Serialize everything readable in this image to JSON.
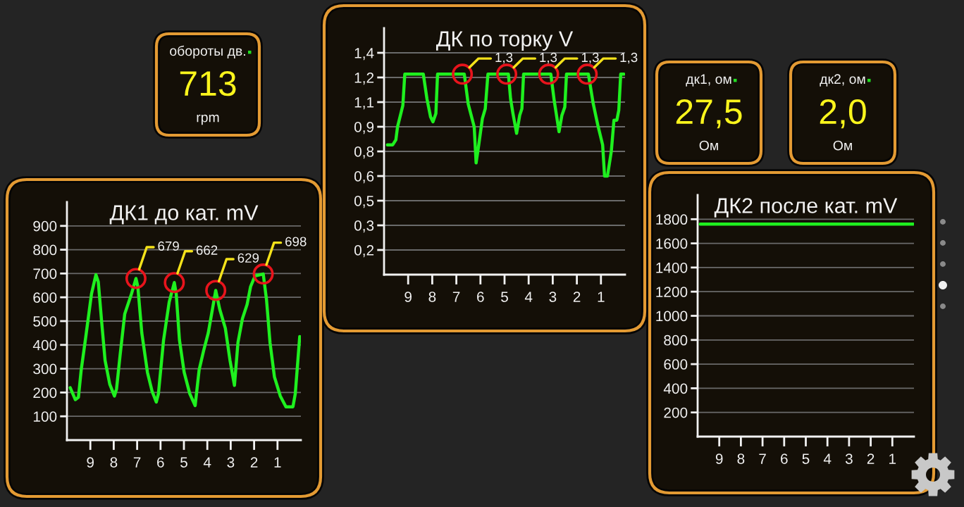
{
  "chart_data": [
    {
      "type": "other",
      "title": "обороты дв.",
      "annotations": [
        "713",
        "rpm"
      ]
    },
    {
      "type": "line",
      "title": "ДК по торку V",
      "x": [
        9.86,
        9.64,
        9.51,
        9.44,
        9.22,
        9.14,
        8.37,
        8.22,
        8.07,
        7.97,
        7.85,
        7.78,
        6.67,
        6.51,
        6.26,
        6.18,
        6.07,
        5.92,
        5.8,
        5.69,
        4.84,
        4.75,
        4.65,
        4.5,
        4.37,
        4.28,
        4.21,
        3.08,
        2.94,
        2.74,
        2.62,
        2.5,
        2.43,
        1.52,
        1.32,
        1.13,
        0.93,
        0.85,
        0.73,
        0.57,
        0.46,
        0.34,
        0.26,
        0.18,
        0.05
      ],
      "series": [
        {
          "color": "#1ff01f",
          "values": [
            0.84,
            0.84,
            0.87,
            0.95,
            1.08,
            1.27,
            1.27,
            1.12,
            1.01,
            0.98,
            1.03,
            1.27,
            1.27,
            1.09,
            0.95,
            0.73,
            0.84,
            1.0,
            1.06,
            1.27,
            1.27,
            1.12,
            1.03,
            0.91,
            1.02,
            1.06,
            1.27,
            1.27,
            1.11,
            0.92,
            1.02,
            1.07,
            1.27,
            1.27,
            1.09,
            0.96,
            0.84,
            0.65,
            0.65,
            0.8,
            0.99,
            0.99,
            1.05,
            1.27,
            1.27
          ]
        }
      ],
      "xlim": [
        10,
        0
      ],
      "xticks": [
        9,
        8,
        7,
        6,
        5,
        4,
        3,
        2,
        1
      ],
      "ylim": [
        0.05,
        1.55
      ],
      "yticks": [
        {
          "value": 0.2,
          "label": "0,2"
        },
        {
          "value": 0.35,
          "label": "0,3"
        },
        {
          "value": 0.5,
          "label": "0,5"
        },
        {
          "value": 0.65,
          "label": "0,6"
        },
        {
          "value": 0.8,
          "label": "0,8"
        },
        {
          "value": 0.95,
          "label": "0,9"
        },
        {
          "value": 1.1,
          "label": "1,1"
        },
        {
          "value": 1.25,
          "label": "1,2"
        },
        {
          "value": 1.4,
          "label": "1,4"
        }
      ],
      "grid": "y",
      "annotations": [
        {
          "text": "1,3",
          "x": 6.75,
          "y": 1.27
        },
        {
          "text": "1,3",
          "x": 4.91,
          "y": 1.27
        },
        {
          "text": "1,3",
          "x": 3.17,
          "y": 1.27
        },
        {
          "text": "1,3",
          "x": 1.57,
          "y": 1.27
        }
      ]
    },
    {
      "type": "other",
      "title": "дк1, ом",
      "annotations": [
        "27,5",
        "Ом"
      ]
    },
    {
      "type": "other",
      "title": "дк2, ом",
      "annotations": [
        "2,0",
        "Ом"
      ]
    },
    {
      "type": "line",
      "title": "ДК1 до кат. mV",
      "x": [
        9.86,
        9.64,
        9.51,
        9.39,
        9.2,
        8.95,
        8.76,
        8.66,
        8.51,
        8.37,
        8.17,
        7.97,
        7.88,
        7.73,
        7.53,
        7.24,
        7.05,
        6.97,
        6.8,
        6.56,
        6.36,
        6.18,
        6.09,
        5.87,
        5.63,
        5.41,
        5.33,
        5.19,
        4.99,
        4.75,
        4.52,
        4.35,
        4.16,
        3.96,
        3.64,
        3.47,
        3.23,
        3.03,
        2.84,
        2.69,
        2.5,
        2.3,
        2.15,
        1.96,
        1.61,
        1.47,
        1.32,
        1.13,
        0.88,
        0.64,
        0.34,
        0.24,
        0.05
      ],
      "series": [
        {
          "color": "#1ff01f",
          "values": [
            220,
            170,
            180,
            295,
            430,
            615,
            695,
            665,
            490,
            335,
            235,
            185,
            215,
            355,
            530,
            615,
            679,
            645,
            450,
            285,
            205,
            160,
            195,
            420,
            580,
            662,
            615,
            420,
            285,
            195,
            145,
            295,
            375,
            450,
            629,
            550,
            470,
            335,
            230,
            410,
            510,
            570,
            645,
            690,
            698,
            590,
            410,
            265,
            185,
            140,
            140,
            195,
            435
          ]
        }
      ],
      "xlim": [
        10,
        0
      ],
      "xticks": [
        9,
        8,
        7,
        6,
        5,
        4,
        3,
        2,
        1
      ],
      "ylim": [
        0,
        1000
      ],
      "yticks": [
        100,
        200,
        300,
        400,
        500,
        600,
        700,
        800,
        900
      ],
      "grid": "y",
      "annotations": [
        {
          "text": "679",
          "x": 7.05,
          "y": 679
        },
        {
          "text": "662",
          "x": 5.41,
          "y": 662
        },
        {
          "text": "629",
          "x": 3.64,
          "y": 629
        },
        {
          "text": "698",
          "x": 1.61,
          "y": 698
        }
      ]
    },
    {
      "type": "line",
      "title": "ДК2 после кат. mV",
      "x": [
        9.88,
        0.02
      ],
      "series": [
        {
          "color": "#1ff01f",
          "values": [
            1760,
            1760
          ]
        }
      ],
      "xlim": [
        10,
        0
      ],
      "xticks": [
        9,
        8,
        7,
        6,
        5,
        4,
        3,
        2,
        1
      ],
      "ylim": [
        0,
        2000
      ],
      "yticks": [
        200,
        400,
        600,
        800,
        1000,
        1200,
        1400,
        1600,
        1800
      ],
      "grid": "y"
    }
  ]
}
